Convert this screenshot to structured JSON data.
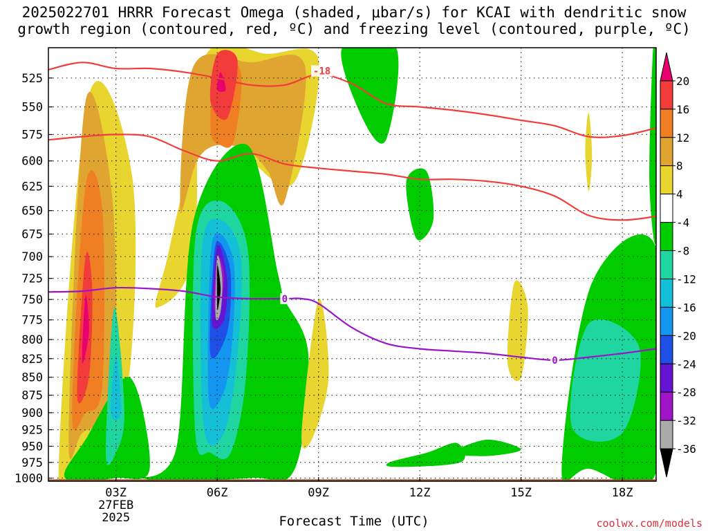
{
  "title_line1": "2025022701 HRRR Forecast Omega (shaded, μbar/s) for KCAI with dendritic snow",
  "title_line2": "growth region (contoured, red, ºC) and freezing level (contoured, purple, ºC)",
  "xlabel": "Forecast Time (UTC)",
  "credit": "coolwx.com/models",
  "chart_data": {
    "type": "heatmap",
    "title": "2025022701 HRRR Forecast Omega (shaded, μbar/s) for KCAI with dendritic snow growth region (contoured, red, ºC) and freezing level (contoured, purple, ºC)",
    "xlabel": "Forecast Time (UTC)",
    "ylabel": "",
    "x_ticks": [
      {
        "hour": 3,
        "label": "03Z",
        "date_label": "27FEB",
        "year_label": "2025"
      },
      {
        "hour": 6,
        "label": "06Z"
      },
      {
        "hour": 9,
        "label": "09Z"
      },
      {
        "hour": 12,
        "label": "12Z"
      },
      {
        "hour": 15,
        "label": "15Z"
      },
      {
        "hour": 18,
        "label": "18Z"
      }
    ],
    "xlim": [
      1,
      19
    ],
    "y_ticks": [
      525,
      550,
      575,
      600,
      625,
      650,
      675,
      700,
      725,
      750,
      775,
      800,
      825,
      850,
      875,
      900,
      925,
      950,
      975,
      1000
    ],
    "ylim_hpa": [
      500,
      1005
    ],
    "y_scale": "log",
    "grid": true,
    "colorbar": {
      "labels": [
        "20",
        "16",
        "12",
        "8",
        "4",
        "-4",
        "-8",
        "-12",
        "-16",
        "-20",
        "-24",
        "-28",
        "-32",
        "-36"
      ],
      "colors": [
        "#e8006e",
        "#f23c3c",
        "#ef7f22",
        "#e0a530",
        "#e8d530",
        "#ffffff",
        "#00cc00",
        "#1fd6a0",
        "#14c0d8",
        "#1496f0",
        "#1e50e8",
        "#6414d2",
        "#a014c8",
        "#aaaaaa",
        "#000000"
      ]
    },
    "omega_regions": [
      {
        "color": "#e8d530",
        "pts": [
          [
            1.3,
            990
          ],
          [
            2.2,
            540
          ],
          [
            3.5,
            620
          ],
          [
            3.3,
            880
          ],
          [
            2.0,
            990
          ]
        ]
      },
      {
        "color": "#e0a530",
        "pts": [
          [
            1.6,
            930
          ],
          [
            2.1,
            545
          ],
          [
            2.9,
            640
          ],
          [
            2.9,
            870
          ],
          [
            2.0,
            930
          ]
        ]
      },
      {
        "color": "#ef7f22",
        "pts": [
          [
            1.7,
            900
          ],
          [
            2.1,
            625
          ],
          [
            2.6,
            650
          ],
          [
            2.6,
            860
          ],
          [
            2.1,
            900
          ]
        ]
      },
      {
        "color": "#f23c3c",
        "pts": [
          [
            1.85,
            875
          ],
          [
            2.1,
            700
          ],
          [
            2.3,
            740
          ],
          [
            2.2,
            850
          ]
        ]
      },
      {
        "color": "#e8006e",
        "pts": [
          [
            2.0,
            830
          ],
          [
            2.1,
            745
          ],
          [
            2.2,
            790
          ]
        ]
      },
      {
        "color": "#e8d530",
        "pts": [
          [
            4.2,
            760
          ],
          [
            5.3,
            700
          ],
          [
            5.6,
            510
          ],
          [
            7.5,
            505
          ],
          [
            9.0,
            510
          ],
          [
            8.3,
            620
          ],
          [
            7.0,
            600
          ],
          [
            6.3,
            575
          ],
          [
            5.2,
            610
          ],
          [
            4.5,
            705
          ]
        ]
      },
      {
        "color": "#e0a530",
        "pts": [
          [
            4.9,
            650
          ],
          [
            5.3,
            515
          ],
          [
            7.0,
            512
          ],
          [
            8.6,
            515
          ],
          [
            8.0,
            640
          ],
          [
            7.5,
            610
          ],
          [
            6.9,
            590
          ],
          [
            6.0,
            585
          ],
          [
            5.4,
            600
          ]
        ]
      },
      {
        "color": "#ef7f22",
        "pts": [
          [
            5.8,
            570
          ],
          [
            6.0,
            510
          ],
          [
            6.7,
            520
          ],
          [
            6.5,
            580
          ],
          [
            6.1,
            585
          ]
        ]
      },
      {
        "color": "#f23c3c",
        "pts": [
          [
            5.8,
            545
          ],
          [
            6.0,
            505
          ],
          [
            6.6,
            510
          ],
          [
            6.3,
            560
          ]
        ]
      },
      {
        "color": "#e8006e",
        "pts": [
          [
            6.0,
            535
          ],
          [
            6.1,
            520
          ],
          [
            6.25,
            535
          ]
        ]
      },
      {
        "color": "#00cc00",
        "pts": [
          [
            1.5,
            1000
          ],
          [
            2.1,
            940
          ],
          [
            3.4,
            850
          ],
          [
            4.0,
            985
          ],
          [
            3.0,
            1000
          ]
        ]
      },
      {
        "color": "#1fd6a0",
        "pts": [
          [
            2.7,
            960
          ],
          [
            2.95,
            760
          ],
          [
            3.25,
            900
          ],
          [
            3.0,
            960
          ]
        ]
      },
      {
        "color": "#14c0d8",
        "pts": [
          [
            2.85,
            900
          ],
          [
            3.0,
            820
          ],
          [
            3.15,
            900
          ]
        ]
      },
      {
        "color": "#00cc00",
        "pts": [
          [
            3.8,
            1000
          ],
          [
            4.8,
            950
          ],
          [
            5.3,
            660
          ],
          [
            6.9,
            585
          ],
          [
            7.8,
            720
          ],
          [
            8.0,
            750
          ],
          [
            8.7,
            820
          ],
          [
            8.3,
            985
          ],
          [
            7.0,
            1000
          ]
        ]
      },
      {
        "color": "#1fd6a0",
        "pts": [
          [
            5.35,
            930
          ],
          [
            5.35,
            680
          ],
          [
            6.1,
            640
          ],
          [
            6.9,
            690
          ],
          [
            6.85,
            850
          ],
          [
            6.4,
            960
          ],
          [
            5.8,
            960
          ]
        ]
      },
      {
        "color": "#14c0d8",
        "pts": [
          [
            5.6,
            920
          ],
          [
            5.55,
            690
          ],
          [
            6.1,
            660
          ],
          [
            6.7,
            700
          ],
          [
            6.6,
            820
          ],
          [
            6.2,
            930
          ]
        ]
      },
      {
        "color": "#1496f0",
        "pts": [
          [
            5.75,
            880
          ],
          [
            5.8,
            700
          ],
          [
            6.1,
            675
          ],
          [
            6.5,
            710
          ],
          [
            6.45,
            800
          ],
          [
            6.2,
            870
          ]
        ]
      },
      {
        "color": "#1e50e8",
        "pts": [
          [
            5.8,
            820
          ],
          [
            5.9,
            700
          ],
          [
            6.1,
            685
          ],
          [
            6.4,
            720
          ],
          [
            6.3,
            790
          ]
        ]
      },
      {
        "color": "#6414d2",
        "pts": [
          [
            5.85,
            780
          ],
          [
            5.95,
            700
          ],
          [
            6.1,
            690
          ],
          [
            6.3,
            730
          ],
          [
            6.2,
            775
          ]
        ]
      },
      {
        "color": "#a014c8",
        "pts": [
          [
            5.9,
            760
          ],
          [
            6.0,
            700
          ],
          [
            6.2,
            720
          ],
          [
            6.1,
            755
          ]
        ]
      },
      {
        "color": "#aaaaaa",
        "pts": [
          [
            5.95,
            770
          ],
          [
            6.0,
            700
          ],
          [
            6.15,
            725
          ],
          [
            6.1,
            765
          ]
        ]
      },
      {
        "color": "#000000",
        "pts": [
          [
            6.0,
            760
          ],
          [
            6.0,
            710
          ],
          [
            6.1,
            735
          ],
          [
            6.05,
            755
          ]
        ]
      },
      {
        "color": "#e8d530",
        "pts": [
          [
            8.5,
            930
          ],
          [
            9.0,
            750
          ],
          [
            9.3,
            850
          ],
          [
            8.8,
            940
          ]
        ]
      },
      {
        "color": "#00cc00",
        "pts": [
          [
            9.7,
            500
          ],
          [
            11.3,
            500
          ],
          [
            11.0,
            580
          ],
          [
            10.3,
            560
          ]
        ]
      },
      {
        "color": "#00cc00",
        "pts": [
          [
            11.6,
            620
          ],
          [
            12.2,
            610
          ],
          [
            12.4,
            660
          ],
          [
            11.9,
            680
          ]
        ]
      },
      {
        "color": "#00cc00",
        "pts": [
          [
            11.1,
            975
          ],
          [
            12.2,
            960
          ],
          [
            13.1,
            945
          ],
          [
            13.2,
            975
          ],
          [
            11.3,
            982
          ]
        ]
      },
      {
        "color": "#00cc00",
        "pts": [
          [
            13.0,
            960
          ],
          [
            14.0,
            940
          ],
          [
            15.0,
            955
          ],
          [
            14.0,
            965
          ]
        ]
      },
      {
        "color": "#e8d530",
        "pts": [
          [
            14.6,
            830
          ],
          [
            14.8,
            730
          ],
          [
            15.2,
            760
          ],
          [
            15.0,
            850
          ]
        ]
      },
      {
        "color": "#e8d530",
        "pts": [
          [
            16.9,
            590
          ],
          [
            17.0,
            555
          ],
          [
            17.1,
            595
          ],
          [
            17.0,
            630
          ]
        ]
      },
      {
        "color": "#00cc00",
        "pts": [
          [
            16.2,
            985
          ],
          [
            17.1,
            730
          ],
          [
            19.0,
            690
          ],
          [
            19.0,
            990
          ],
          [
            17.0,
            985
          ]
        ]
      },
      {
        "color": "#1fd6a0",
        "pts": [
          [
            16.5,
            920
          ],
          [
            17.0,
            780
          ],
          [
            18.5,
            810
          ],
          [
            18.0,
            930
          ]
        ]
      },
      {
        "color": "#00cc00",
        "pts": [
          [
            18.9,
            505
          ],
          [
            19.0,
            500
          ],
          [
            19.0,
            680
          ],
          [
            18.8,
            620
          ]
        ]
      }
    ],
    "series": [
      {
        "name": "-18",
        "color": "#f23c3c",
        "x": [
          1.0,
          2.0,
          3.0,
          4.0,
          5.0,
          6.0,
          7.0,
          8.0,
          9.0,
          10.0,
          11.0,
          12.0,
          13.0,
          14.0,
          15.0,
          16.0,
          17.0,
          18.0,
          19.0
        ],
        "y": [
          518,
          512,
          517,
          517,
          520,
          525,
          531,
          531,
          522,
          530,
          547,
          550,
          553,
          557,
          562,
          567,
          577,
          576,
          569
        ]
      },
      {
        "name": "-12",
        "color": "#f23c3c",
        "x": [
          1.0,
          2.0,
          3.0,
          4.0,
          5.0,
          6.0,
          7.0,
          8.0,
          9.0,
          10.0,
          11.0,
          12.0,
          13.0,
          14.0,
          15.0,
          16.0,
          17.0,
          18.0,
          19.0
        ],
        "y": [
          580,
          577,
          575,
          577,
          590,
          600,
          593,
          603,
          607,
          610,
          613,
          618,
          618,
          620,
          625,
          635,
          655,
          660,
          656
        ]
      },
      {
        "name": "0",
        "color": "#9a14c8",
        "x": [
          1.0,
          2.0,
          3.0,
          4.0,
          5.0,
          6.0,
          7.0,
          8.0,
          8.5,
          9.0,
          10.0,
          11.0,
          12.0,
          13.0,
          14.0,
          15.0,
          16.0,
          17.0,
          18.0,
          19.0
        ],
        "y": [
          741,
          740,
          736,
          737,
          740,
          747,
          749,
          749,
          749,
          755,
          785,
          805,
          812,
          815,
          818,
          823,
          827,
          823,
          818,
          812
        ]
      }
    ],
    "contour_labels": [
      {
        "text": "-18",
        "x": 9.1,
        "y": 519,
        "color": "#f23c3c"
      },
      {
        "text": "0",
        "x": 8.0,
        "y": 749,
        "color": "#9a14c8"
      },
      {
        "text": "0",
        "x": 16.0,
        "y": 827,
        "color": "#9a14c8"
      }
    ],
    "terrain": {
      "color": "#a0522d",
      "pressure_top": 1002
    }
  }
}
